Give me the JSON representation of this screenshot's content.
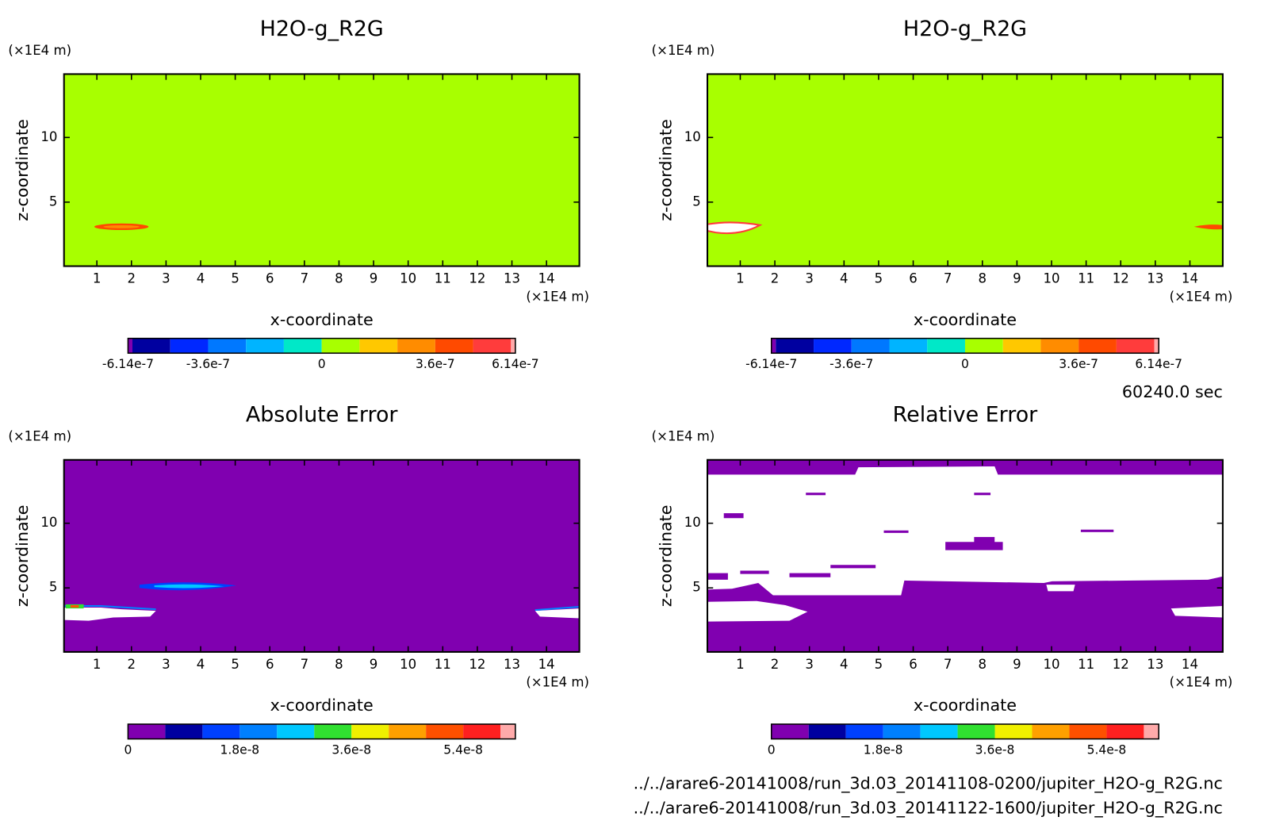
{
  "chart_data": [
    {
      "type": "contour",
      "title": "H2O-g_R2G",
      "xlabel": "x-coordinate",
      "ylabel": "z-coordinate",
      "x_unit": "(×1E4 m)",
      "y_unit": "(×1E4 m)",
      "xlim": [
        0.05,
        14.95
      ],
      "xticks": [
        1,
        2,
        3,
        4,
        5,
        6,
        7,
        8,
        9,
        10,
        11,
        12,
        13,
        14
      ],
      "ylim": [
        0.05,
        14.9
      ],
      "yticks": [
        5,
        10
      ],
      "colorbar": {
        "levels": [
          -6.14e-07,
          -6e-07,
          -4.8e-07,
          -3.6e-07,
          -2.4e-07,
          -1.2e-07,
          0,
          1.2e-07,
          2.4e-07,
          3.6e-07,
          4.8e-07,
          6e-07,
          6.14e-07
        ],
        "colors": [
          "#8000b0",
          "#0000a0",
          "#0028ff",
          "#0078ff",
          "#00b4ff",
          "#00e8c8",
          "#a8ff00",
          "#ffc800",
          "#ff8c00",
          "#ff4a00",
          "#ff3c3c",
          "#ffaaaa"
        ],
        "ticks": [
          -6.14e-07,
          -3.6e-07,
          0,
          3.6e-07,
          6.14e-07
        ]
      }
    },
    {
      "type": "contour",
      "title": "H2O-g_R2G",
      "xlabel": "x-coordinate",
      "ylabel": "z-coordinate",
      "x_unit": "(×1E4 m)",
      "y_unit": "(×1E4 m)",
      "xlim": [
        0.05,
        14.95
      ],
      "xticks": [
        1,
        2,
        3,
        4,
        5,
        6,
        7,
        8,
        9,
        10,
        11,
        12,
        13,
        14
      ],
      "ylim": [
        0.05,
        14.9
      ],
      "yticks": [
        5,
        10
      ],
      "colorbar": {
        "levels": [
          -6.14e-07,
          -6e-07,
          -4.8e-07,
          -3.6e-07,
          -2.4e-07,
          -1.2e-07,
          0,
          1.2e-07,
          2.4e-07,
          3.6e-07,
          4.8e-07,
          6e-07,
          6.14e-07
        ],
        "colors": [
          "#8000b0",
          "#0000a0",
          "#0028ff",
          "#0078ff",
          "#00b4ff",
          "#00e8c8",
          "#a8ff00",
          "#ffc800",
          "#ff8c00",
          "#ff4a00",
          "#ff3c3c",
          "#ffaaaa"
        ],
        "ticks": [
          -6.14e-07,
          -3.6e-07,
          0,
          3.6e-07,
          6.14e-07
        ]
      }
    },
    {
      "type": "contour",
      "title": "Absolute Error",
      "xlabel": "x-coordinate",
      "ylabel": "z-coordinate",
      "x_unit": "(×1E4 m)",
      "y_unit": "(×1E4 m)",
      "xlim": [
        0.05,
        14.95
      ],
      "xticks": [
        1,
        2,
        3,
        4,
        5,
        6,
        7,
        8,
        9,
        10,
        11,
        12,
        13,
        14
      ],
      "ylim": [
        0.05,
        14.9
      ],
      "yticks": [
        5,
        10
      ],
      "colorbar": {
        "levels": [
          0,
          6e-09,
          1.2e-08,
          1.8e-08,
          2.4e-08,
          3e-08,
          3.6e-08,
          4.2e-08,
          4.8e-08,
          5.4e-08,
          6e-08,
          6.24e-08
        ],
        "colors": [
          "#8000b0",
          "#0000a0",
          "#0040ff",
          "#0080ff",
          "#00c8ff",
          "#30e030",
          "#f0f000",
          "#ffa000",
          "#ff5000",
          "#ff2020",
          "#ffaaaa"
        ],
        "ticks": [
          0,
          1.8e-08,
          3.6e-08,
          5.4e-08
        ]
      }
    },
    {
      "type": "contour",
      "title": "Relative Error",
      "xlabel": "x-coordinate",
      "ylabel": "z-coordinate",
      "x_unit": "(×1E4 m)",
      "y_unit": "(×1E4 m)",
      "xlim": [
        0.05,
        14.95
      ],
      "xticks": [
        1,
        2,
        3,
        4,
        5,
        6,
        7,
        8,
        9,
        10,
        11,
        12,
        13,
        14
      ],
      "ylim": [
        0.05,
        14.9
      ],
      "yticks": [
        5,
        10
      ],
      "colorbar": {
        "levels": [
          0,
          6e-09,
          1.2e-08,
          1.8e-08,
          2.4e-08,
          3e-08,
          3.6e-08,
          4.2e-08,
          4.8e-08,
          5.4e-08,
          6e-08,
          6.24e-08
        ],
        "colors": [
          "#8000b0",
          "#0000a0",
          "#0040ff",
          "#0080ff",
          "#00c8ff",
          "#30e030",
          "#f0f000",
          "#ffa000",
          "#ff5000",
          "#ff2020",
          "#ffaaaa"
        ],
        "ticks": [
          0,
          1.8e-08,
          3.6e-08,
          5.4e-08
        ]
      }
    }
  ],
  "time_label": "60240.0 sec",
  "files": [
    "../../arare6-20141008/run_3d.03_20141108-0200/jupiter_H2O-g_R2G.nc",
    "../../arare6-20141008/run_3d.03_20141122-1600/jupiter_H2O-g_R2G.nc"
  ]
}
